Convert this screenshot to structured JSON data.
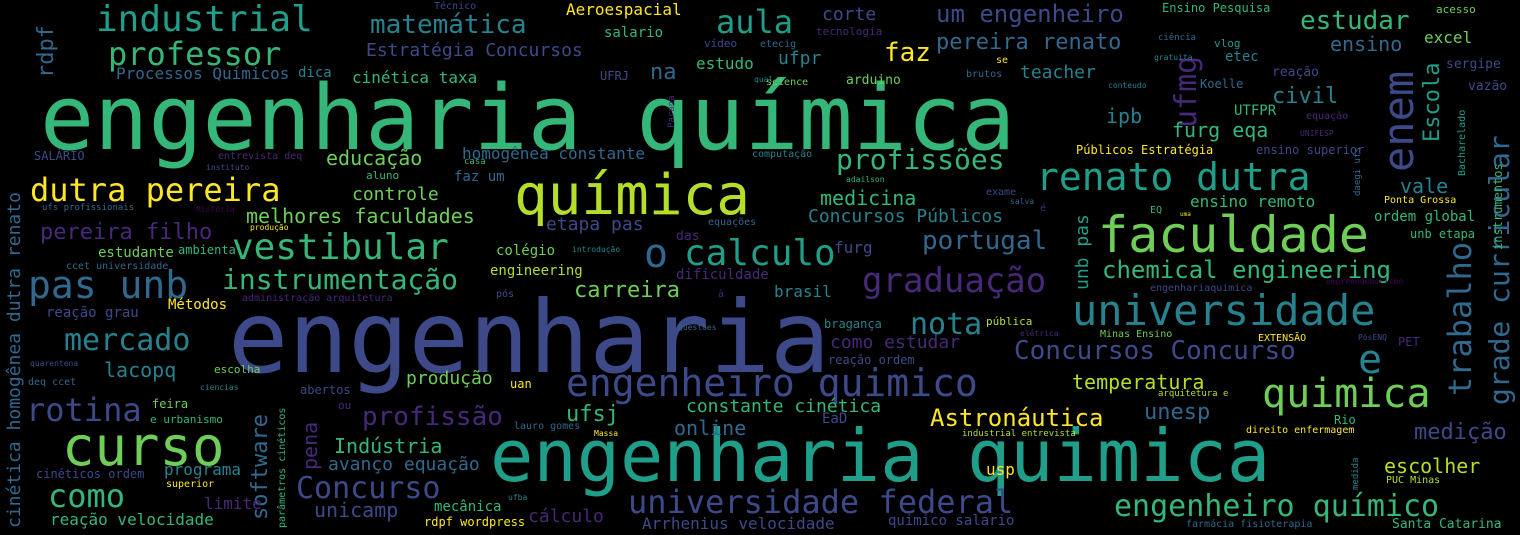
{
  "palette": {
    "background": "#000000",
    "yellow": "#fde725",
    "lime": "#b5de2b",
    "light_green": "#6ece58",
    "green": "#35b779",
    "teal_green": "#1f9e89",
    "teal": "#26828e",
    "blue_teal": "#31688e",
    "blue": "#3e4989",
    "indigo": "#482878",
    "purple": "#440154"
  },
  "words": [
    "engenharia química",
    "engenharia",
    "engenharia quimica",
    "química",
    "curso",
    "faculdade",
    "universidade",
    "engenheiro quimico",
    "quimica",
    "vestibular",
    "pas unb",
    "renato dutra",
    "dutra pereira",
    "industrial",
    "professor",
    "matemática",
    "aula",
    "um engenheiro",
    "estudar",
    "Aeroespacial",
    "Técnico",
    "rdpf",
    "faz",
    "Estratégia Concursos",
    "pereira renato",
    "ensino",
    "excel",
    "Processos Químicos",
    "dica",
    "cinética taxa",
    "na",
    "estudo",
    "ufpr",
    "teacher",
    "etec",
    "reação",
    "sergipe",
    "ufmg",
    "enem",
    "Escola",
    "civil",
    "vazão",
    "ipb",
    "UTFPR",
    "furg eqa",
    "trabalho",
    "grade curricular",
    "Bacharelado",
    "instrumentos",
    "educação",
    "homogênea constante",
    "profissões",
    "Públicos Estratégia",
    "ensino superior",
    "controle",
    "medicina",
    "vale",
    "melhores faculdades",
    "Concursos Públicos",
    "ensino remoto",
    "ordem global",
    "pereira filho",
    "etapa pas",
    "o",
    "calculo",
    "portugal",
    "unb pas",
    "furg",
    "chemical engineering",
    "instrumentação",
    "colégio",
    "graduação",
    "unb etapa",
    "carreira",
    "engineering",
    "brasil",
    "estudante",
    "ambiental",
    "mercado",
    "lacopq",
    "nota",
    "como estudar",
    "Concursos Concurso",
    "e",
    "temperatura",
    "reação grau",
    "Métodos",
    "produção",
    "rotina",
    "profissão",
    "pena",
    "software",
    "ufsj",
    "constante cinética",
    "Astronáutica",
    "unesp",
    "Indústria",
    "online",
    "medição",
    "avanço equação",
    "Concurso",
    "universidade federal",
    "como",
    "engenheiro químico",
    "escolher",
    "usp",
    "programa",
    "limite",
    "unicamp",
    "mecânica",
    "cálculo",
    "Arrhenius velocidade",
    "quimico salario",
    "reação velocidade",
    "cinéticos ordem",
    "superior",
    "Santa Catarina",
    "rdpf wordpress",
    "cinética homogênea dutra renato",
    "SALÁRIO",
    "corte",
    "salario",
    "tecnologia",
    "vídeo",
    "etecig",
    "ciência",
    "gratuita",
    "vlog",
    "acesso",
    "Ensino Pesquisa",
    "Koelle",
    "equação",
    "UNIFESP",
    "computação",
    "Ponta Grossa",
    "exame",
    "salva",
    "EQ",
    "uma",
    "daegi ufs",
    "adailson",
    "equações",
    "das",
    "dificuldade",
    "introdução",
    "pós",
    "administração arquitetura",
    "engenhariaquimica",
    "empreendedorismo",
    "ufs profissionais",
    "História",
    "produção",
    "ccet universidade",
    "Questões",
    "pública",
    "elétrica",
    "Minas Ensino",
    "EXTENSÃO",
    "PósENQ",
    "PET",
    "quarentena",
    "deq ccet",
    "escolha",
    "ciencias",
    "abertos",
    "uan",
    "feira",
    "e urbanismo",
    "ou",
    "EaD",
    "lauro gomes",
    "Massa",
    "arquitetura e",
    "Rio",
    "direito enfermagem",
    "industrial entrevista",
    "medida",
    "PUC Minas",
    "farmácia fisioterapia",
    "parâmetros cinéticos",
    "ufba",
    "entrevista deq",
    "instituto",
    "casa",
    "aluno",
    "faz um",
    "qual",
    "science",
    "arduino",
    "brutos",
    "se",
    "conteudo",
    "UFRJ",
    "Paraná",
    "bragança",
    "reação ordem",
    "é",
    "à"
  ]
}
